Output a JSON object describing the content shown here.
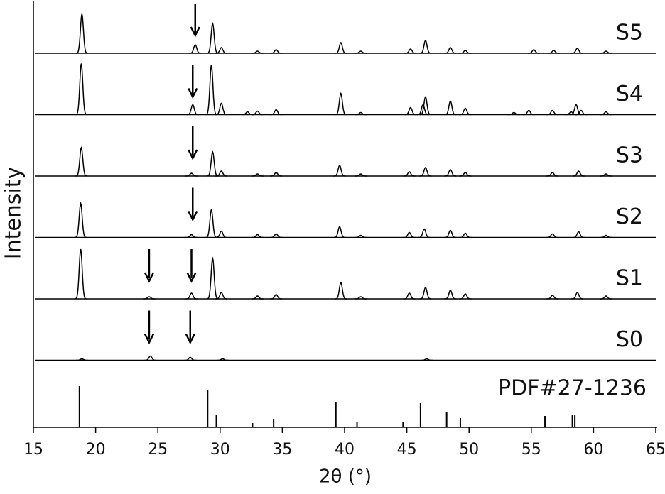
{
  "chart_data": {
    "type": "xrd",
    "xlabel": "2θ (°)",
    "ylabel": "Intensity",
    "color": "#000000",
    "xlim": [
      15,
      65
    ],
    "xticks": [
      15,
      20,
      25,
      30,
      35,
      40,
      45,
      50,
      55,
      60,
      65
    ],
    "series": [
      {
        "name": "S5",
        "x": [
          18.9,
          28.0,
          29.4,
          30.1,
          33.0,
          34.5,
          39.7,
          41.3,
          45.3,
          46.5,
          48.5,
          49.7,
          55.2,
          56.8,
          58.7,
          61.0
        ],
        "values": [
          55,
          12,
          42,
          8,
          3,
          5,
          15,
          3,
          6,
          18,
          8,
          4,
          5,
          4,
          7,
          3
        ],
        "arrows": [
          28.0
        ]
      },
      {
        "name": "S4",
        "x": [
          18.85,
          27.8,
          29.3,
          30.1,
          32.2,
          33.0,
          34.5,
          39.7,
          41.3,
          45.3,
          46.3,
          46.5,
          48.5,
          49.7,
          53.6,
          54.8,
          56.7,
          58.2,
          58.6,
          59.0,
          61.0
        ],
        "values": [
          72,
          14,
          70,
          16,
          4,
          5,
          7,
          30,
          3,
          10,
          14,
          25,
          19,
          9,
          3,
          6,
          6,
          4,
          14,
          6,
          4
        ],
        "arrows": [
          27.8
        ]
      },
      {
        "name": "S3",
        "x": [
          18.85,
          27.7,
          29.4,
          30.1,
          33.0,
          34.5,
          39.6,
          41.3,
          45.2,
          46.5,
          48.5,
          49.7,
          56.7,
          58.8,
          61.0
        ],
        "values": [
          40,
          4,
          34,
          7,
          3,
          5,
          15,
          3,
          6,
          12,
          9,
          5,
          5,
          7,
          3
        ],
        "arrows": [
          27.8
        ]
      },
      {
        "name": "S2",
        "x": [
          18.8,
          27.7,
          29.3,
          30.1,
          33.0,
          34.5,
          39.6,
          41.3,
          45.2,
          46.4,
          48.5,
          49.7,
          56.7,
          58.8,
          61.0
        ],
        "values": [
          48,
          4,
          39,
          9,
          4,
          5,
          15,
          3,
          7,
          12,
          10,
          6,
          5,
          8,
          3
        ],
        "arrows": [
          27.8
        ]
      },
      {
        "name": "S1",
        "x": [
          18.8,
          24.3,
          27.7,
          29.4,
          30.1,
          33.0,
          34.5,
          39.7,
          41.3,
          45.2,
          46.5,
          48.5,
          49.7,
          56.7,
          58.7,
          61.0
        ],
        "values": [
          70,
          3,
          8,
          57,
          9,
          4,
          6,
          23,
          3,
          8,
          16,
          12,
          7,
          5,
          9,
          4
        ],
        "arrows": [
          24.3,
          27.7
        ]
      },
      {
        "name": "S0",
        "x": [
          18.9,
          24.4,
          27.6,
          30.2,
          46.6
        ],
        "values": [
          2,
          6,
          4,
          2,
          2
        ],
        "arrows": [
          24.3,
          27.6
        ]
      }
    ],
    "reference": {
      "name": "PDF#27-1236",
      "x": [
        18.7,
        29.0,
        29.7,
        32.6,
        34.3,
        39.3,
        41.0,
        44.7,
        46.1,
        48.2,
        49.3,
        56.1,
        58.3,
        58.5
      ],
      "values": [
        58,
        53,
        18,
        6,
        11,
        35,
        7,
        7,
        34,
        22,
        13,
        16,
        17,
        17
      ]
    }
  }
}
